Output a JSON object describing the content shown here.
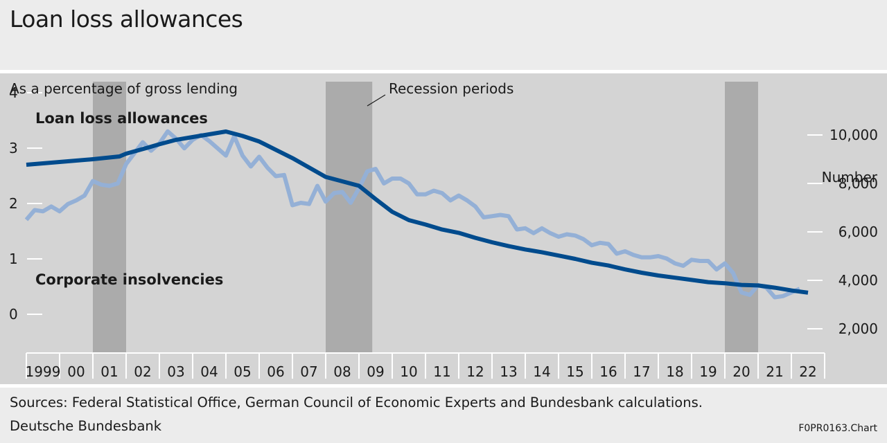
{
  "header": {
    "title": "Loan loss allowances"
  },
  "footer": {
    "sources": "Sources: Federal Statistical Office, German Council of Economic Experts and Bundesbank calculations.",
    "publisher": "Deutsche Bundesbank",
    "chart_id": "F0PR0163.Chart"
  },
  "chart_data": {
    "type": "line",
    "title": "Loan loss allowances",
    "left_axis": {
      "label": "As a percentage of gross lending",
      "ticks": [
        "0",
        "1",
        "2",
        "3",
        "4"
      ],
      "range": [
        -0.7,
        4.2
      ]
    },
    "right_axis": {
      "label": "Number",
      "ticks": [
        "2,000",
        "4,000",
        "6,000",
        "8,000",
        "10,000"
      ],
      "range": [
        1000,
        12200
      ]
    },
    "x_axis": {
      "range": [
        1999.0,
        2023.0
      ],
      "tick_labels": [
        "1999",
        "00",
        "01",
        "02",
        "03",
        "04",
        "05",
        "06",
        "07",
        "08",
        "09",
        "10",
        "11",
        "12",
        "13",
        "14",
        "15",
        "16",
        "17",
        "18",
        "19",
        "20",
        "21",
        "22"
      ]
    },
    "recessions": [
      {
        "start": 2001.0,
        "end": 2002.0
      },
      {
        "start": 2008.0,
        "end": 2009.4
      },
      {
        "start": 2020.0,
        "end": 2021.0
      }
    ],
    "annotation": "Recession periods",
    "colors": {
      "plot_bg": "#d4d4d4",
      "recession": "#ababab",
      "loan_loss": "#004b8d",
      "insolvency": "#94b0d6",
      "axis": "#ffffff",
      "text": "#1a1a1a"
    },
    "series": [
      {
        "name": "Loan loss allowances",
        "axis": "left",
        "label": "Loan loss allowances",
        "x": [
          1999.0,
          2000.0,
          2001.0,
          2001.8,
          2002.0,
          2002.6,
          2003.0,
          2003.5,
          2004.0,
          2004.5,
          2005.0,
          2005.5,
          2006.0,
          2006.5,
          2007.0,
          2007.5,
          2008.0,
          2008.5,
          2009.0,
          2009.5,
          2010.0,
          2010.5,
          2011.0,
          2011.5,
          2012.0,
          2012.5,
          2013.0,
          2013.5,
          2014.0,
          2014.5,
          2015.0,
          2015.5,
          2016.0,
          2016.5,
          2017.0,
          2017.5,
          2018.0,
          2018.5,
          2019.0,
          2019.5,
          2020.0,
          2020.5,
          2021.0,
          2021.5,
          2022.0,
          2022.5
        ],
        "values": [
          2.7,
          2.75,
          2.8,
          2.85,
          2.9,
          3.0,
          3.07,
          3.15,
          3.2,
          3.25,
          3.3,
          3.22,
          3.12,
          2.97,
          2.82,
          2.65,
          2.48,
          2.4,
          2.32,
          2.08,
          1.85,
          1.7,
          1.62,
          1.53,
          1.47,
          1.38,
          1.3,
          1.23,
          1.17,
          1.12,
          1.06,
          1.0,
          0.93,
          0.88,
          0.81,
          0.75,
          0.7,
          0.66,
          0.62,
          0.58,
          0.56,
          0.53,
          0.52,
          0.48,
          0.43,
          0.39
        ]
      },
      {
        "name": "Corporate insolvencies",
        "axis": "right",
        "label": "Corporate insolvencies",
        "x": [
          1999.0,
          1999.25,
          1999.5,
          1999.75,
          2000.0,
          2000.25,
          2000.5,
          2000.75,
          2001.0,
          2001.25,
          2001.5,
          2001.75,
          2002.0,
          2002.25,
          2002.5,
          2002.75,
          2003.0,
          2003.25,
          2003.5,
          2003.75,
          2004.0,
          2004.25,
          2004.5,
          2004.75,
          2005.0,
          2005.25,
          2005.5,
          2005.75,
          2006.0,
          2006.25,
          2006.5,
          2006.75,
          2007.0,
          2007.25,
          2007.5,
          2007.75,
          2008.0,
          2008.25,
          2008.5,
          2008.75,
          2009.0,
          2009.25,
          2009.5,
          2009.75,
          2010.0,
          2010.25,
          2010.5,
          2010.75,
          2011.0,
          2011.25,
          2011.5,
          2011.75,
          2012.0,
          2012.25,
          2012.5,
          2012.75,
          2013.0,
          2013.25,
          2013.5,
          2013.75,
          2014.0,
          2014.25,
          2014.5,
          2014.75,
          2015.0,
          2015.25,
          2015.5,
          2015.75,
          2016.0,
          2016.25,
          2016.5,
          2016.75,
          2017.0,
          2017.25,
          2017.5,
          2017.75,
          2018.0,
          2018.25,
          2018.5,
          2018.75,
          2019.0,
          2019.25,
          2019.5,
          2019.75,
          2020.0,
          2020.25,
          2020.5,
          2020.75,
          2021.0,
          2021.25,
          2021.5,
          2021.75,
          2022.0,
          2022.25
        ],
        "values": [
          6500,
          6900,
          6850,
          7050,
          6850,
          7150,
          7300,
          7500,
          8100,
          7950,
          7900,
          8000,
          8800,
          9250,
          9700,
          9350,
          9650,
          10150,
          9850,
          9450,
          9800,
          10000,
          9750,
          9450,
          9150,
          9950,
          9150,
          8700,
          9100,
          8650,
          8300,
          8350,
          7100,
          7200,
          7150,
          7900,
          7250,
          7600,
          7650,
          7200,
          7800,
          8500,
          8600,
          8000,
          8200,
          8200,
          8000,
          7550,
          7550,
          7700,
          7600,
          7300,
          7500,
          7300,
          7050,
          6600,
          6650,
          6700,
          6650,
          6100,
          6150,
          5950,
          6150,
          5950,
          5800,
          5900,
          5850,
          5700,
          5450,
          5550,
          5500,
          5100,
          5200,
          5050,
          4950,
          4950,
          5000,
          4900,
          4700,
          4600,
          4850,
          4800,
          4800,
          4450,
          4700,
          4300,
          3500,
          3400,
          3800,
          3700,
          3300,
          3350,
          3500,
          3650
        ]
      }
    ]
  }
}
